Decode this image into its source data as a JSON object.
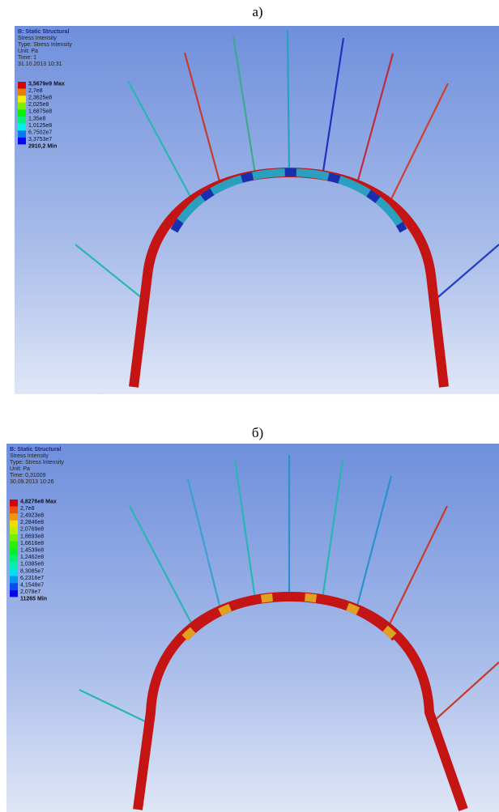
{
  "panels": [
    {
      "label": "а)",
      "header": [
        "B: Static Structural",
        "Stress Intensity",
        "Type: Stress Intensity",
        "Unit: Pa",
        "Time: 1",
        "31.10.2013 10:31"
      ],
      "legend": [
        "3,5679e9 Max",
        "2,7e8",
        "2,3625e8",
        "2,025e8",
        "1,6875e8",
        "1,35e8",
        "1,0125e8",
        "6,7502e7",
        "3,3753e7",
        "2910,2 Min"
      ]
    },
    {
      "label": "б)",
      "header": [
        "B: Static Structural",
        "Stress Intensity",
        "Type: Stress Intensity",
        "Unit: Pa",
        "Time: 0,31009",
        "30.09.2013 10:26"
      ],
      "legend": [
        "4,8276e8 Max",
        "2,7e8",
        "2,4923e8",
        "2,2846e8",
        "2,0769e8",
        "1,8693e8",
        "1,6616e8",
        "1,4539e8",
        "1,2462e8",
        "1,0385e8",
        "8,3085e7",
        "6,2316e7",
        "4,1548e7",
        "2,078e7",
        "11265 Min"
      ]
    }
  ]
}
